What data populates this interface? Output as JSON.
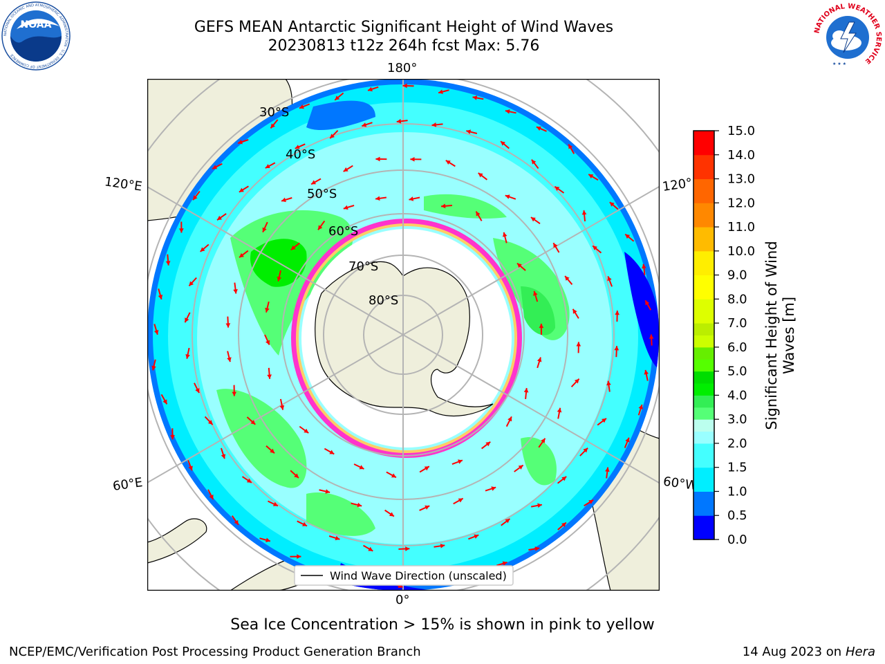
{
  "title": {
    "line1": "GEFS MEAN Antarctic Significant Height of Wind Waves",
    "line2": "20230813 t12z 264h fcst   Max: 5.76"
  },
  "logos": {
    "left": {
      "name": "noaa-logo",
      "text": "NOAA",
      "ring_text": "NATIONAL OCEANIC AND ATMOSPHERIC ADMINISTRATION · U.S. DEPARTMENT OF COMMERCE"
    },
    "right": {
      "name": "nws-logo",
      "ring_text": "NATIONAL WEATHER SERVICE"
    }
  },
  "map": {
    "projection": "south-polar-stereographic",
    "lon_labels": {
      "top": "180°",
      "left_upper": "120°E",
      "right_upper": "120°",
      "left_lower": "60°E",
      "right_lower": "60°W",
      "bottom": "0°"
    },
    "lat_labels": [
      "30°S",
      "40°S",
      "50°S",
      "60°S",
      "70°S",
      "80°S"
    ],
    "legend_label": "Wind Wave Direction (unscaled)",
    "colors": {
      "land": "#efefdc",
      "ice_edge": "#ff33cc",
      "arrow": "#ff0000",
      "grid": "#b4b4b4"
    }
  },
  "colorbar": {
    "title": "Significant Height of Wind Waves [m]",
    "title_lines": [
      "Significant Height of Wind",
      "Waves [m]"
    ],
    "ticks": [
      "0.0",
      "0.5",
      "1.0",
      "1.5",
      "2.0",
      "3.0",
      "4.0",
      "5.0",
      "6.0",
      "7.0",
      "8.0",
      "9.0",
      "10.0",
      "11.0",
      "12.0",
      "13.0",
      "14.0",
      "15.0"
    ],
    "levels": [
      {
        "from": 0.0,
        "to": 0.5,
        "color": "#0000ff"
      },
      {
        "from": 0.5,
        "to": 1.0,
        "color": "#0077ff"
      },
      {
        "from": 1.0,
        "to": 1.5,
        "color": "#00eeff"
      },
      {
        "from": 1.5,
        "to": 2.0,
        "color": "#44ffff"
      },
      {
        "from": 2.0,
        "to": 2.5,
        "color": "#99ffff"
      },
      {
        "from": 2.5,
        "to": 3.0,
        "color": "#bbffee"
      },
      {
        "from": 3.0,
        "to": 3.5,
        "color": "#55ff77"
      },
      {
        "from": 3.5,
        "to": 4.0,
        "color": "#33ee55"
      },
      {
        "from": 4.0,
        "to": 4.5,
        "color": "#00ee00"
      },
      {
        "from": 4.5,
        "to": 5.0,
        "color": "#00dd00"
      },
      {
        "from": 5.0,
        "to": 5.5,
        "color": "#55ff00"
      },
      {
        "from": 5.5,
        "to": 6.0,
        "color": "#66ee00"
      },
      {
        "from": 6.0,
        "to": 6.5,
        "color": "#ccff00"
      },
      {
        "from": 6.5,
        "to": 7.0,
        "color": "#bbee00"
      },
      {
        "from": 7.0,
        "to": 8.0,
        "color": "#ddff00"
      },
      {
        "from": 8.0,
        "to": 9.0,
        "color": "#ffff00"
      },
      {
        "from": 9.0,
        "to": 10.0,
        "color": "#ffee00"
      },
      {
        "from": 10.0,
        "to": 11.0,
        "color": "#ffbb00"
      },
      {
        "from": 11.0,
        "to": 12.0,
        "color": "#ff8800"
      },
      {
        "from": 12.0,
        "to": 13.0,
        "color": "#ff6600"
      },
      {
        "from": 13.0,
        "to": 14.0,
        "color": "#ff3300"
      },
      {
        "from": 14.0,
        "to": 15.0,
        "color": "#ff0000"
      }
    ]
  },
  "caption": "Sea Ice Concentration > 15% is shown in pink to yellow",
  "footer": {
    "left": "NCEP/EMC/Verification Post Processing Product Generation Branch",
    "right_date": "14 Aug 2023 on",
    "right_host": "Hera"
  }
}
